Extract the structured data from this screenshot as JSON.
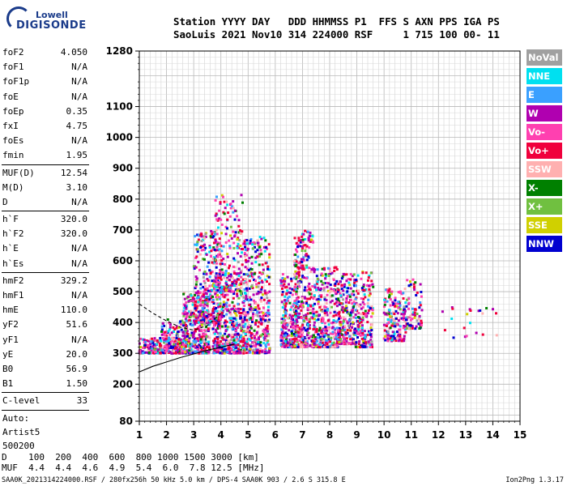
{
  "logo": {
    "line1": "Lowell",
    "line2": "DIGISONDE"
  },
  "header": {
    "line1": "Station YYYY DAY   DDD HHMMSS P1  FFS S AXN PPS IGA PS",
    "line2": "SaoLuis 2021 Nov10 314 224000 RSF     1 715 100 00- 11"
  },
  "params": [
    {
      "name": "foF2",
      "value": "4.050"
    },
    {
      "name": "foF1",
      "value": "N/A"
    },
    {
      "name": "foF1p",
      "value": "N/A"
    },
    {
      "name": "foE",
      "value": "N/A"
    },
    {
      "name": "foEp",
      "value": "0.35"
    },
    {
      "name": "fxI",
      "value": "4.75"
    },
    {
      "name": "foEs",
      "value": "N/A"
    },
    {
      "name": "fmin",
      "value": "1.95"
    },
    {
      "sep": true
    },
    {
      "name": "MUF(D)",
      "value": "12.54"
    },
    {
      "name": "M(D)",
      "value": "3.10"
    },
    {
      "name": "D",
      "value": "N/A"
    },
    {
      "sep": true
    },
    {
      "name": "h`F",
      "value": "320.0"
    },
    {
      "name": "h`F2",
      "value": "320.0"
    },
    {
      "name": "h`E",
      "value": "N/A"
    },
    {
      "name": "h`Es",
      "value": "N/A"
    },
    {
      "sep": true
    },
    {
      "name": "hmF2",
      "value": "329.2"
    },
    {
      "name": "hmF1",
      "value": "N/A"
    },
    {
      "name": "hmE",
      "value": "110.0"
    },
    {
      "name": "yF2",
      "value": "51.6"
    },
    {
      "name": "yF1",
      "value": "N/A"
    },
    {
      "name": "yE",
      "value": "20.0"
    },
    {
      "name": "B0",
      "value": "56.9"
    },
    {
      "name": "B1",
      "value": "1.50"
    },
    {
      "sep": true
    },
    {
      "name": "C-level",
      "value": "33"
    },
    {
      "sep": true
    }
  ],
  "auto": [
    "Auto:",
    "Artist5",
    "500200"
  ],
  "legend": [
    {
      "label": "NoVal",
      "color": "#a0a0a0"
    },
    {
      "label": "NNE",
      "color": "#00e0f0"
    },
    {
      "label": "E",
      "color": "#3aa0ff"
    },
    {
      "label": "W",
      "color": "#b000b0"
    },
    {
      "label": "Vo-",
      "color": "#ff40b0"
    },
    {
      "label": "Vo+",
      "color": "#f0003c"
    },
    {
      "label": "SSW",
      "color": "#ffb0b0"
    },
    {
      "label": "X-",
      "color": "#008000"
    },
    {
      "label": "X+",
      "color": "#70c040"
    },
    {
      "label": "SSE",
      "color": "#d0d000"
    },
    {
      "label": "NNW",
      "color": "#0000d0"
    }
  ],
  "muf_table": {
    "line1": "D    100  200  400  600  800 1000 1500 3000 [km]",
    "line2": "MUF  4.4  4.4  4.6  4.9  5.4  6.0  7.8 12.5 [MHz]"
  },
  "footer_left": "SAA0K_2021314224000.RSF / 280fx256h 50 kHz 5.0 km / DPS-4 SAA0K 903 / 2.6 S 315.8 E",
  "footer_right": "Ion2Png 1.3.17",
  "chart_data": {
    "type": "scatter",
    "x_ticks": [
      "1",
      "2",
      "3",
      "4",
      "5",
      "6",
      "7",
      "8",
      "9",
      "10",
      "11",
      "12",
      "13",
      "14",
      "15"
    ],
    "y_ticks": [
      "80",
      "200",
      "300",
      "400",
      "500",
      "600",
      "700",
      "800",
      "900",
      "1000",
      "1100",
      "1280"
    ],
    "xlim": [
      1,
      15
    ],
    "ylim": [
      80,
      1280
    ],
    "grid": true,
    "legend_placement": "right",
    "clusters": [
      {
        "fmin": 1.0,
        "fmax": 2.6,
        "hmin": 300,
        "hmax": 350,
        "n": 240
      },
      {
        "fmin": 1.8,
        "fmax": 2.8,
        "hmin": 340,
        "hmax": 410,
        "n": 70
      },
      {
        "fmin": 2.6,
        "fmax": 3.6,
        "hmin": 300,
        "hmax": 500,
        "n": 380
      },
      {
        "fmin": 3.0,
        "fmax": 4.0,
        "hmin": 400,
        "hmax": 700,
        "n": 280
      },
      {
        "fmin": 3.7,
        "fmax": 4.8,
        "hmin": 300,
        "hmax": 560,
        "n": 420
      },
      {
        "fmin": 3.8,
        "fmax": 4.8,
        "hmin": 500,
        "hmax": 820,
        "n": 180
      },
      {
        "fmin": 4.8,
        "fmax": 5.8,
        "hmin": 300,
        "hmax": 680,
        "n": 420
      },
      {
        "fmin": 6.2,
        "fmax": 6.8,
        "hmin": 320,
        "hmax": 560,
        "n": 230
      },
      {
        "fmin": 6.7,
        "fmax": 7.4,
        "hmin": 320,
        "hmax": 700,
        "n": 320
      },
      {
        "fmin": 7.4,
        "fmax": 8.3,
        "hmin": 320,
        "hmax": 580,
        "n": 300
      },
      {
        "fmin": 8.3,
        "fmax": 8.9,
        "hmin": 330,
        "hmax": 560,
        "n": 200
      },
      {
        "fmin": 8.9,
        "fmax": 9.6,
        "hmin": 320,
        "hmax": 570,
        "n": 190
      },
      {
        "fmin": 10.0,
        "fmax": 10.8,
        "hmin": 340,
        "hmax": 510,
        "n": 170
      },
      {
        "fmin": 10.7,
        "fmax": 11.4,
        "hmin": 380,
        "hmax": 540,
        "n": 90
      },
      {
        "fmin": 11.8,
        "fmax": 14.2,
        "hmin": 350,
        "hmax": 470,
        "n": 22
      }
    ],
    "curves": [
      {
        "style": "solid",
        "x": [
          1.0,
          1.5,
          2.0,
          2.5,
          3.0,
          3.5,
          4.0,
          4.5
        ],
        "y": [
          240,
          258,
          272,
          286,
          298,
          310,
          320,
          330
        ]
      },
      {
        "style": "dashed",
        "x": [
          1.0,
          1.5,
          2.0,
          2.5,
          3.0,
          3.5,
          4.0
        ],
        "y": [
          460,
          430,
          405,
          385,
          375,
          390,
          430
        ]
      }
    ]
  }
}
